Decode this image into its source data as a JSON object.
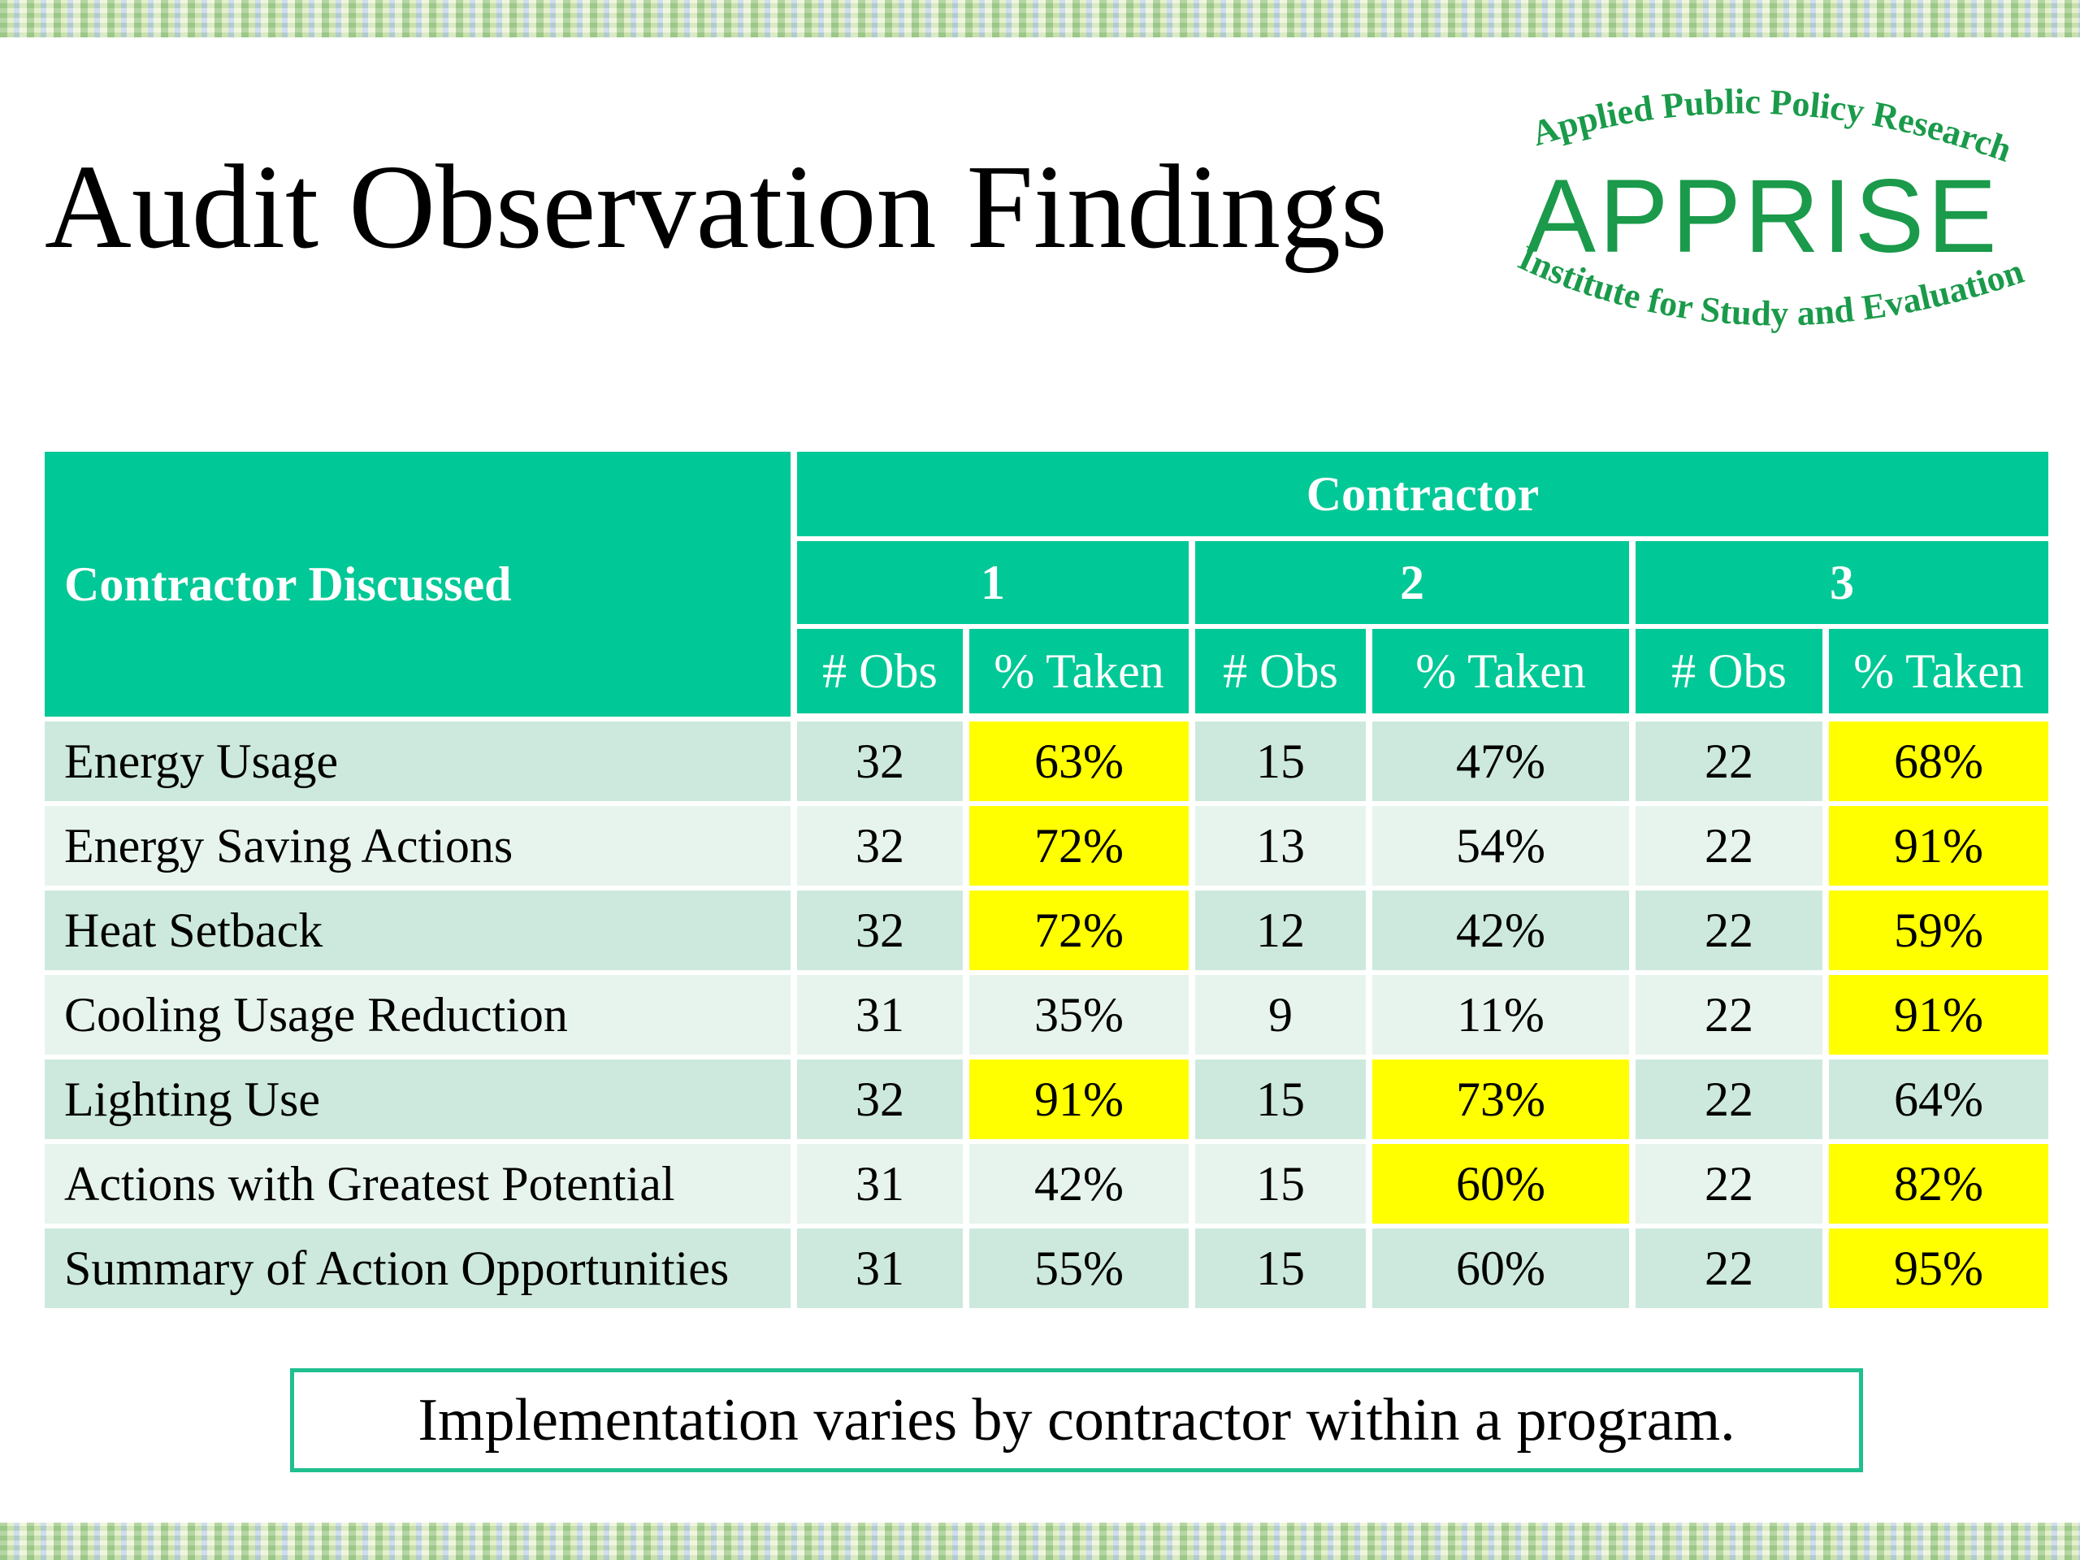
{
  "slide": {
    "title": "Audit Observation Findings",
    "note": "Implementation varies by contractor within a program."
  },
  "logo": {
    "top_arc": "Applied Public Policy Research",
    "name": "APPRISE",
    "bottom_arc": "Institute for Study and Evaluation",
    "color": "#1a9a4a"
  },
  "table": {
    "row_header": "Contractor Discussed",
    "group_header": "Contractor",
    "contractors": [
      "1",
      "2",
      "3"
    ],
    "subheaders": [
      "# Obs",
      "% Taken",
      "# Obs",
      "% Taken",
      "# Obs",
      "% Taken"
    ],
    "header_color": "#00c896",
    "highlight_color": "#ffff00",
    "rows": [
      {
        "label": "Energy Usage",
        "cells": [
          "32",
          "63%",
          "15",
          "47%",
          "22",
          "68%"
        ],
        "highlight": [
          false,
          true,
          false,
          false,
          false,
          true
        ]
      },
      {
        "label": "Energy Saving Actions",
        "cells": [
          "32",
          "72%",
          "13",
          "54%",
          "22",
          "91%"
        ],
        "highlight": [
          false,
          true,
          false,
          false,
          false,
          true
        ]
      },
      {
        "label": "Heat Setback",
        "cells": [
          "32",
          "72%",
          "12",
          "42%",
          "22",
          "59%"
        ],
        "highlight": [
          false,
          true,
          false,
          false,
          false,
          true
        ]
      },
      {
        "label": "Cooling Usage Reduction",
        "cells": [
          "31",
          "35%",
          "9",
          "11%",
          "22",
          "91%"
        ],
        "highlight": [
          false,
          false,
          false,
          false,
          false,
          true
        ]
      },
      {
        "label": "Lighting Use",
        "cells": [
          "32",
          "91%",
          "15",
          "73%",
          "22",
          "64%"
        ],
        "highlight": [
          false,
          true,
          false,
          true,
          false,
          false
        ]
      },
      {
        "label": "Actions with Greatest Potential",
        "cells": [
          "31",
          "42%",
          "15",
          "60%",
          "22",
          "82%"
        ],
        "highlight": [
          false,
          false,
          false,
          true,
          false,
          true
        ]
      },
      {
        "label": "Summary of Action Opportunities",
        "cells": [
          "31",
          "55%",
          "15",
          "60%",
          "22",
          "95%"
        ],
        "highlight": [
          false,
          false,
          false,
          false,
          false,
          true
        ]
      }
    ]
  }
}
